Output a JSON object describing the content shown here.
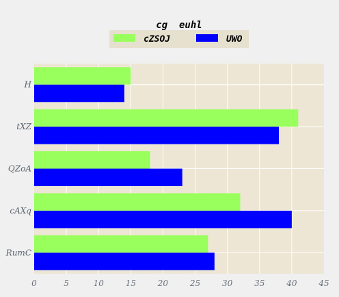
{
  "chart_data": {
    "type": "bar",
    "orientation": "horizontal",
    "title": "cg  euhl",
    "categories": [
      "H",
      "tXZ",
      "QZoA",
      "cAXq",
      "RumC"
    ],
    "series": [
      {
        "name": "cZSOJ",
        "color": "#99ff5c",
        "values": [
          15,
          41,
          18,
          32,
          27
        ]
      },
      {
        "name": "UWO",
        "color": "#0000ff",
        "values": [
          14,
          38,
          23,
          40,
          28
        ]
      }
    ],
    "xlim": [
      0,
      45
    ],
    "xticks": [
      "0",
      "5",
      "10",
      "15",
      "20",
      "25",
      "30",
      "35",
      "40",
      "45"
    ],
    "xlabel": "",
    "ylabel": "",
    "grid": true,
    "legend_position": "top-center",
    "plot_background": "#ede6d4"
  }
}
